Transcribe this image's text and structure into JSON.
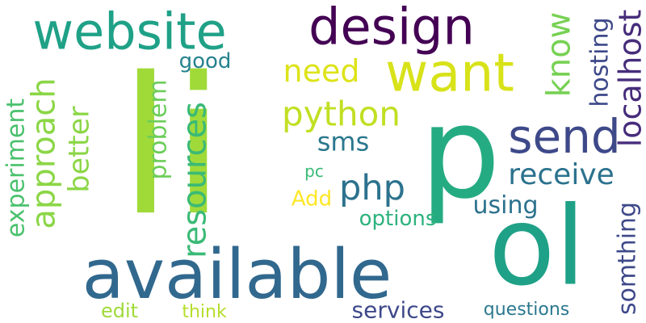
{
  "words": [
    {
      "text": "li",
      "color": "#a0da39",
      "rotated": false
    },
    {
      "text": "p",
      "color": "#25ab82",
      "rotated": false
    },
    {
      "text": "ol",
      "color": "#1fa187",
      "rotated": false
    },
    {
      "text": "available",
      "color": "#31688e",
      "rotated": false
    },
    {
      "text": "design",
      "color": "#440154",
      "rotated": false
    },
    {
      "text": "website",
      "color": "#1fa187",
      "rotated": false
    },
    {
      "text": "want",
      "color": "#d8e219",
      "rotated": false
    },
    {
      "text": "send",
      "color": "#3e4989",
      "rotated": false
    },
    {
      "text": "need",
      "color": "#dde318",
      "rotated": false
    },
    {
      "text": "python",
      "color": "#c2df23",
      "rotated": false
    },
    {
      "text": "receive",
      "color": "#2c728e",
      "rotated": false
    },
    {
      "text": "php",
      "color": "#2c728e",
      "rotated": false
    },
    {
      "text": "sms",
      "color": "#2a788e",
      "rotated": false
    },
    {
      "text": "good",
      "color": "#26828e",
      "rotated": false
    },
    {
      "text": "pc",
      "color": "#3aba76",
      "rotated": false
    },
    {
      "text": "Add",
      "color": "#fde725",
      "rotated": false
    },
    {
      "text": "options",
      "color": "#2db27d",
      "rotated": false
    },
    {
      "text": "using",
      "color": "#2c728e",
      "rotated": false
    },
    {
      "text": "services",
      "color": "#3e4989",
      "rotated": false
    },
    {
      "text": "questions",
      "color": "#2a788e",
      "rotated": false
    },
    {
      "text": "edit",
      "color": "#a0da39",
      "rotated": false
    },
    {
      "text": "think",
      "color": "#b5de2b",
      "rotated": false
    },
    {
      "text": "approach",
      "color": "#8bd646",
      "rotated": true
    },
    {
      "text": "better",
      "color": "#8bd646",
      "rotated": true
    },
    {
      "text": "experiment",
      "color": "#4ac16d",
      "rotated": true
    },
    {
      "text": "problem",
      "color": "#6ccd5a",
      "rotated": true
    },
    {
      "text": "resources",
      "color": "#3aba76",
      "rotated": true
    },
    {
      "text": "know",
      "color": "#77d153",
      "rotated": true
    },
    {
      "text": "hosting",
      "color": "#3e4989",
      "rotated": true
    },
    {
      "text": "localhost",
      "color": "#472d7b",
      "rotated": true
    },
    {
      "text": "somthing",
      "color": "#3e4989",
      "rotated": true
    }
  ]
}
